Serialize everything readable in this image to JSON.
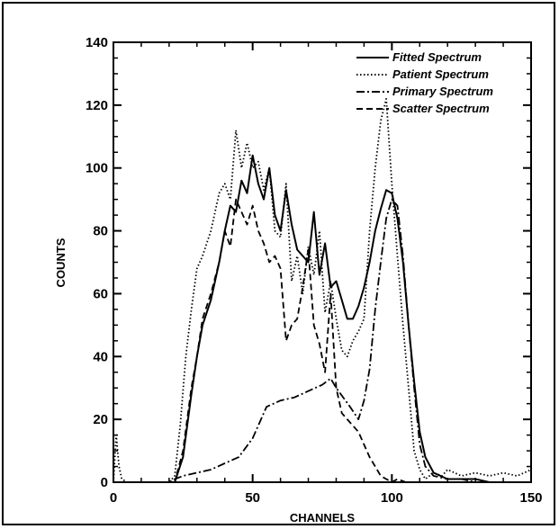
{
  "chart_data": {
    "type": "line",
    "title": "",
    "xlabel": "CHANNELS",
    "ylabel": "COUNTS",
    "xlim": [
      0,
      150
    ],
    "ylim": [
      0,
      140
    ],
    "xticks": [
      "0",
      "50",
      "100",
      "150"
    ],
    "yticks": [
      "0",
      "20",
      "40",
      "60",
      "80",
      "100",
      "120",
      "140"
    ],
    "grid": false,
    "legend_position": "top-right",
    "series": [
      {
        "name": "Fitted Spectrum",
        "style": "solid",
        "x": [
          0,
          5,
          10,
          15,
          20,
          22,
          25,
          28,
          30,
          32,
          35,
          38,
          40,
          42,
          44,
          46,
          48,
          50,
          52,
          54,
          56,
          58,
          60,
          62,
          64,
          66,
          68,
          70,
          72,
          74,
          76,
          78,
          80,
          82,
          84,
          86,
          88,
          90,
          92,
          94,
          96,
          98,
          100,
          102,
          104,
          106,
          108,
          110,
          112,
          115,
          120,
          125,
          130,
          135,
          140,
          145,
          150
        ],
        "y": [
          0,
          0,
          0,
          0,
          0,
          0,
          8,
          28,
          40,
          50,
          58,
          70,
          80,
          88,
          86,
          96,
          92,
          104,
          95,
          90,
          100,
          85,
          80,
          93,
          82,
          74,
          72,
          70,
          86,
          66,
          76,
          62,
          64,
          58,
          52,
          52,
          56,
          62,
          70,
          80,
          87,
          93,
          92,
          84,
          70,
          50,
          32,
          16,
          8,
          3,
          1,
          1,
          1,
          0,
          0,
          0,
          0
        ]
      },
      {
        "name": "Patient Spectrum",
        "style": "dotted",
        "x": [
          0,
          1,
          2,
          3,
          5,
          10,
          15,
          20,
          22,
          24,
          26,
          28,
          30,
          32,
          35,
          38,
          40,
          42,
          44,
          46,
          48,
          50,
          52,
          54,
          56,
          58,
          60,
          62,
          64,
          66,
          68,
          70,
          72,
          74,
          76,
          78,
          80,
          82,
          84,
          86,
          88,
          90,
          92,
          94,
          96,
          98,
          100,
          102,
          104,
          106,
          108,
          110,
          112,
          115,
          118,
          120,
          125,
          130,
          135,
          140,
          145,
          150
        ],
        "y": [
          0,
          15,
          5,
          1,
          0,
          0,
          0,
          0,
          2,
          18,
          40,
          55,
          68,
          72,
          80,
          92,
          95,
          90,
          112,
          100,
          108,
          100,
          102,
          93,
          100,
          80,
          78,
          95,
          64,
          72,
          60,
          75,
          66,
          80,
          54,
          64,
          52,
          42,
          40,
          45,
          48,
          52,
          80,
          100,
          115,
          122,
          95,
          72,
          50,
          30,
          10,
          4,
          1,
          3,
          2,
          4,
          2,
          3,
          2,
          3,
          2,
          4
        ]
      },
      {
        "name": "Primary Spectrum",
        "style": "dash-dot",
        "x": [
          0,
          10,
          20,
          22,
          25,
          30,
          35,
          40,
          45,
          50,
          55,
          60,
          65,
          70,
          75,
          78,
          80,
          85,
          88,
          90,
          92,
          94,
          96,
          98,
          100,
          102,
          104,
          106,
          108,
          110,
          112,
          115,
          120,
          125,
          130,
          135,
          140,
          145,
          150
        ],
        "y": [
          0,
          0,
          0,
          1,
          2,
          3,
          4,
          6,
          8,
          14,
          24,
          26,
          27,
          29,
          31,
          33,
          30,
          24,
          20,
          26,
          36,
          55,
          70,
          84,
          90,
          88,
          72,
          50,
          30,
          12,
          5,
          2,
          1,
          1,
          0,
          0,
          0,
          0,
          0
        ]
      },
      {
        "name": "Scatter Spectrum",
        "style": "dashed",
        "x": [
          0,
          10,
          20,
          22,
          25,
          28,
          30,
          32,
          35,
          38,
          40,
          42,
          44,
          46,
          48,
          50,
          52,
          54,
          56,
          58,
          60,
          62,
          64,
          66,
          68,
          70,
          72,
          74,
          76,
          78,
          80,
          82,
          84,
          86,
          88,
          90,
          92,
          94,
          96,
          98,
          100,
          102,
          105,
          110,
          115,
          120,
          130,
          140,
          150
        ],
        "y": [
          0,
          0,
          0,
          0,
          10,
          30,
          40,
          52,
          60,
          70,
          80,
          75,
          90,
          86,
          82,
          88,
          80,
          76,
          70,
          72,
          68,
          45,
          50,
          52,
          62,
          74,
          50,
          44,
          35,
          60,
          30,
          22,
          20,
          18,
          16,
          12,
          8,
          5,
          2,
          1,
          0,
          1,
          0,
          0,
          0,
          0,
          0,
          0,
          0
        ]
      }
    ]
  }
}
